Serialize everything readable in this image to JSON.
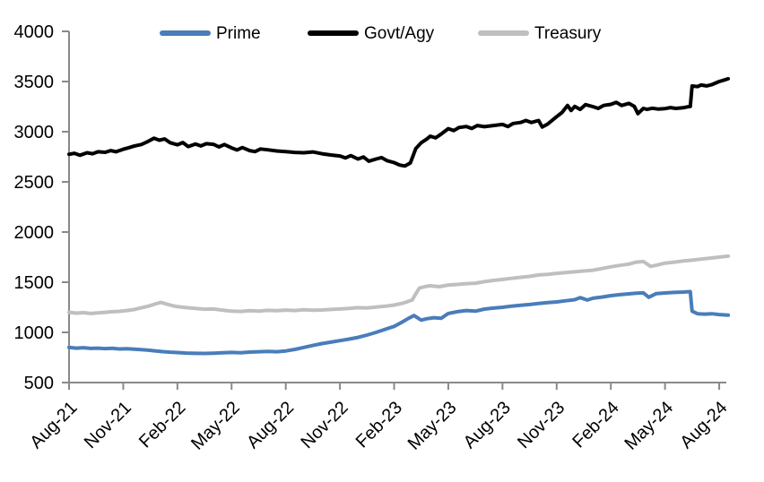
{
  "chart_data": {
    "type": "line",
    "title": "",
    "xlabel": "",
    "ylabel": "",
    "x_unit": "months since Aug-2021",
    "ylim": [
      500,
      4000
    ],
    "y_ticks": [
      500,
      1000,
      1500,
      2000,
      2500,
      3000,
      3500,
      4000
    ],
    "x_tick_months": [
      0,
      3,
      6,
      9,
      12,
      15,
      18,
      21,
      24,
      27,
      30,
      33,
      36
    ],
    "x_tick_labels": [
      "Aug-21",
      "Nov-21",
      "Feb-22",
      "May-22",
      "Aug-22",
      "Nov-22",
      "Feb-23",
      "May-23",
      "Aug-23",
      "Nov-23",
      "Feb-24",
      "May-24",
      "Aug-24"
    ],
    "grid": false,
    "legend_position": "top",
    "axis_color": "#898989",
    "text_color": "#000000",
    "series": [
      {
        "name": "Prime",
        "color": "#497DBA",
        "points": [
          [
            0,
            850
          ],
          [
            0.4,
            843
          ],
          [
            0.8,
            847
          ],
          [
            1.2,
            840
          ],
          [
            1.6,
            843
          ],
          [
            2,
            838
          ],
          [
            2.4,
            841
          ],
          [
            2.8,
            835
          ],
          [
            3.2,
            837
          ],
          [
            3.6,
            832
          ],
          [
            4,
            828
          ],
          [
            4.4,
            822
          ],
          [
            4.8,
            815
          ],
          [
            5.2,
            808
          ],
          [
            5.6,
            803
          ],
          [
            6,
            799
          ],
          [
            6.5,
            794
          ],
          [
            7,
            791
          ],
          [
            7.5,
            790
          ],
          [
            8,
            793
          ],
          [
            8.5,
            797
          ],
          [
            9,
            800
          ],
          [
            9.5,
            796
          ],
          [
            10,
            804
          ],
          [
            10.5,
            807
          ],
          [
            11,
            810
          ],
          [
            11.5,
            807
          ],
          [
            12,
            815
          ],
          [
            12.5,
            830
          ],
          [
            13,
            850
          ],
          [
            13.5,
            870
          ],
          [
            14,
            888
          ],
          [
            14.5,
            903
          ],
          [
            15,
            918
          ],
          [
            15.5,
            933
          ],
          [
            16,
            950
          ],
          [
            16.5,
            973
          ],
          [
            17,
            1000
          ],
          [
            17.5,
            1030
          ],
          [
            18,
            1060
          ],
          [
            18.4,
            1098
          ],
          [
            18.8,
            1140
          ],
          [
            19.1,
            1168
          ],
          [
            19.5,
            1122
          ],
          [
            19.8,
            1136
          ],
          [
            20.2,
            1146
          ],
          [
            20.6,
            1140
          ],
          [
            21,
            1188
          ],
          [
            21.5,
            1206
          ],
          [
            22,
            1218
          ],
          [
            22.5,
            1212
          ],
          [
            23,
            1232
          ],
          [
            23.5,
            1242
          ],
          [
            24,
            1250
          ],
          [
            24.5,
            1262
          ],
          [
            25,
            1270
          ],
          [
            25.5,
            1278
          ],
          [
            26,
            1288
          ],
          [
            26.5,
            1296
          ],
          [
            27,
            1304
          ],
          [
            27.5,
            1315
          ],
          [
            28,
            1326
          ],
          [
            28.3,
            1346
          ],
          [
            28.7,
            1322
          ],
          [
            29,
            1340
          ],
          [
            29.5,
            1352
          ],
          [
            30,
            1366
          ],
          [
            30.5,
            1376
          ],
          [
            31,
            1384
          ],
          [
            31.4,
            1390
          ],
          [
            31.8,
            1394
          ],
          [
            32.1,
            1350
          ],
          [
            32.5,
            1386
          ],
          [
            33,
            1393
          ],
          [
            33.5,
            1398
          ],
          [
            34,
            1402
          ],
          [
            34.4,
            1406
          ],
          [
            34.5,
            1212
          ],
          [
            34.8,
            1186
          ],
          [
            35.2,
            1182
          ],
          [
            35.6,
            1186
          ],
          [
            36,
            1178
          ],
          [
            36.5,
            1172
          ]
        ]
      },
      {
        "name": "Govt/Agy",
        "color": "#000000",
        "points": [
          [
            0,
            2775
          ],
          [
            0.3,
            2785
          ],
          [
            0.6,
            2765
          ],
          [
            1,
            2790
          ],
          [
            1.3,
            2780
          ],
          [
            1.6,
            2800
          ],
          [
            2,
            2795
          ],
          [
            2.3,
            2812
          ],
          [
            2.6,
            2800
          ],
          [
            3,
            2825
          ],
          [
            3.3,
            2840
          ],
          [
            3.6,
            2856
          ],
          [
            4,
            2872
          ],
          [
            4.3,
            2896
          ],
          [
            4.7,
            2935
          ],
          [
            5,
            2915
          ],
          [
            5.3,
            2928
          ],
          [
            5.6,
            2890
          ],
          [
            6,
            2870
          ],
          [
            6.3,
            2892
          ],
          [
            6.6,
            2852
          ],
          [
            7,
            2878
          ],
          [
            7.3,
            2858
          ],
          [
            7.6,
            2880
          ],
          [
            8,
            2874
          ],
          [
            8.3,
            2848
          ],
          [
            8.6,
            2872
          ],
          [
            9,
            2838
          ],
          [
            9.3,
            2818
          ],
          [
            9.6,
            2842
          ],
          [
            10,
            2812
          ],
          [
            10.3,
            2802
          ],
          [
            10.6,
            2828
          ],
          [
            11,
            2820
          ],
          [
            11.5,
            2808
          ],
          [
            12,
            2802
          ],
          [
            12.5,
            2794
          ],
          [
            13,
            2790
          ],
          [
            13.5,
            2798
          ],
          [
            14,
            2780
          ],
          [
            14.5,
            2768
          ],
          [
            15,
            2758
          ],
          [
            15.3,
            2738
          ],
          [
            15.6,
            2762
          ],
          [
            16,
            2728
          ],
          [
            16.3,
            2748
          ],
          [
            16.6,
            2706
          ],
          [
            17,
            2728
          ],
          [
            17.3,
            2742
          ],
          [
            17.6,
            2712
          ],
          [
            18,
            2692
          ],
          [
            18.3,
            2668
          ],
          [
            18.6,
            2658
          ],
          [
            18.9,
            2688
          ],
          [
            19.2,
            2832
          ],
          [
            19.5,
            2890
          ],
          [
            19.8,
            2926
          ],
          [
            20,
            2955
          ],
          [
            20.3,
            2938
          ],
          [
            20.6,
            2976
          ],
          [
            21,
            3030
          ],
          [
            21.3,
            3012
          ],
          [
            21.6,
            3042
          ],
          [
            22,
            3052
          ],
          [
            22.3,
            3032
          ],
          [
            22.6,
            3062
          ],
          [
            23,
            3050
          ],
          [
            23.5,
            3062
          ],
          [
            24,
            3072
          ],
          [
            24.3,
            3052
          ],
          [
            24.6,
            3082
          ],
          [
            25,
            3092
          ],
          [
            25.3,
            3112
          ],
          [
            25.6,
            3092
          ],
          [
            26,
            3112
          ],
          [
            26.2,
            3046
          ],
          [
            26.5,
            3076
          ],
          [
            27,
            3150
          ],
          [
            27.3,
            3192
          ],
          [
            27.6,
            3262
          ],
          [
            27.8,
            3212
          ],
          [
            28,
            3252
          ],
          [
            28.3,
            3222
          ],
          [
            28.6,
            3270
          ],
          [
            29,
            3250
          ],
          [
            29.3,
            3232
          ],
          [
            29.6,
            3262
          ],
          [
            30,
            3272
          ],
          [
            30.3,
            3292
          ],
          [
            30.6,
            3262
          ],
          [
            31,
            3282
          ],
          [
            31.3,
            3252
          ],
          [
            31.5,
            3180
          ],
          [
            31.8,
            3232
          ],
          [
            32,
            3222
          ],
          [
            32.3,
            3234
          ],
          [
            32.6,
            3226
          ],
          [
            33,
            3230
          ],
          [
            33.3,
            3240
          ],
          [
            33.6,
            3232
          ],
          [
            34,
            3238
          ],
          [
            34.2,
            3246
          ],
          [
            34.4,
            3252
          ],
          [
            34.5,
            3455
          ],
          [
            34.8,
            3450
          ],
          [
            35,
            3465
          ],
          [
            35.3,
            3456
          ],
          [
            35.6,
            3470
          ],
          [
            36,
            3500
          ],
          [
            36.3,
            3516
          ],
          [
            36.5,
            3528
          ]
        ]
      },
      {
        "name": "Treasury",
        "color": "#BFBFBF",
        "points": [
          [
            0,
            1200
          ],
          [
            0.4,
            1192
          ],
          [
            0.8,
            1196
          ],
          [
            1.2,
            1188
          ],
          [
            1.6,
            1194
          ],
          [
            2,
            1200
          ],
          [
            2.4,
            1206
          ],
          [
            2.8,
            1210
          ],
          [
            3.2,
            1218
          ],
          [
            3.6,
            1228
          ],
          [
            4,
            1245
          ],
          [
            4.4,
            1262
          ],
          [
            4.8,
            1285
          ],
          [
            5.1,
            1298
          ],
          [
            5.4,
            1282
          ],
          [
            5.7,
            1268
          ],
          [
            6,
            1256
          ],
          [
            6.5,
            1246
          ],
          [
            7,
            1238
          ],
          [
            7.5,
            1231
          ],
          [
            8,
            1233
          ],
          [
            8.5,
            1221
          ],
          [
            9,
            1212
          ],
          [
            9.5,
            1209
          ],
          [
            10,
            1216
          ],
          [
            10.5,
            1212
          ],
          [
            11,
            1220
          ],
          [
            11.5,
            1216
          ],
          [
            12,
            1222
          ],
          [
            12.5,
            1218
          ],
          [
            13,
            1226
          ],
          [
            13.5,
            1221
          ],
          [
            14,
            1223
          ],
          [
            14.5,
            1229
          ],
          [
            15,
            1233
          ],
          [
            15.5,
            1239
          ],
          [
            16,
            1246
          ],
          [
            16.5,
            1243
          ],
          [
            17,
            1253
          ],
          [
            17.5,
            1261
          ],
          [
            18,
            1272
          ],
          [
            18.5,
            1292
          ],
          [
            19,
            1322
          ],
          [
            19.2,
            1385
          ],
          [
            19.4,
            1442
          ],
          [
            19.7,
            1456
          ],
          [
            20,
            1464
          ],
          [
            20.5,
            1455
          ],
          [
            21,
            1472
          ],
          [
            21.5,
            1478
          ],
          [
            22,
            1486
          ],
          [
            22.5,
            1490
          ],
          [
            23,
            1505
          ],
          [
            23.5,
            1518
          ],
          [
            24,
            1528
          ],
          [
            24.5,
            1538
          ],
          [
            25,
            1549
          ],
          [
            25.5,
            1558
          ],
          [
            26,
            1572
          ],
          [
            26.5,
            1578
          ],
          [
            27,
            1588
          ],
          [
            27.5,
            1596
          ],
          [
            28,
            1604
          ],
          [
            28.5,
            1612
          ],
          [
            29,
            1620
          ],
          [
            29.5,
            1636
          ],
          [
            30,
            1654
          ],
          [
            30.5,
            1668
          ],
          [
            31,
            1680
          ],
          [
            31.4,
            1700
          ],
          [
            31.8,
            1706
          ],
          [
            32.2,
            1658
          ],
          [
            32.6,
            1672
          ],
          [
            33,
            1690
          ],
          [
            33.5,
            1700
          ],
          [
            34,
            1712
          ],
          [
            34.5,
            1720
          ],
          [
            35,
            1730
          ],
          [
            35.5,
            1740
          ],
          [
            36,
            1750
          ],
          [
            36.5,
            1760
          ]
        ]
      }
    ]
  }
}
